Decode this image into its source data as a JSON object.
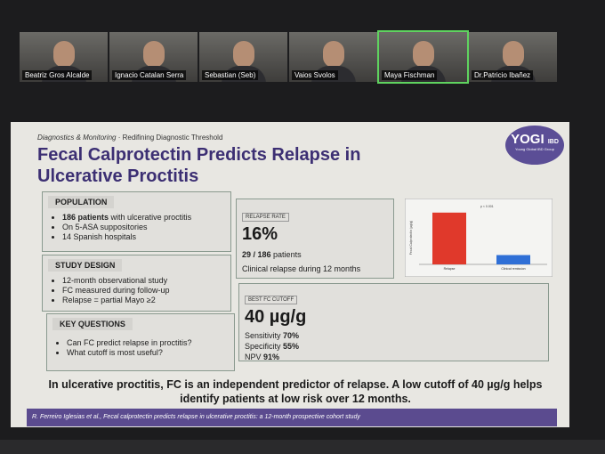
{
  "participants": [
    "Beatriz Gros Alcalde",
    "Ignacio Catalan Serra",
    "Sebastian (Seb)",
    "Vaios Svolos",
    "Maya Fischman",
    "Dr.Patricio Ibañez"
  ],
  "slide": {
    "kicker": "Diagnostics & Monitoring",
    "kicker_detail": "· Redifining Diagnostic Threshold",
    "title": "Fecal Calprotectin Predicts Relapse in Ulcerative Proctitis",
    "logo": {
      "name": "YOGI",
      "tag": "IBD",
      "subtitle": "Young Global IBD Group"
    },
    "population": {
      "heading": "POPULATION",
      "lead_bold": "186 patients",
      "lead_rest": "with ulcerative proctitis",
      "items": [
        "On 5-ASA suppositories",
        "14 Spanish hospitals"
      ]
    },
    "study_design": {
      "heading": "STUDY DESIGN",
      "items": [
        "12-month observational study",
        "FC measured during follow-up",
        "Relapse = partial Mayo ≥2"
      ]
    },
    "key_questions": {
      "heading": "KEY QUESTIONS",
      "items": [
        "Can FC predict relapse in proctitis?",
        "What cutoff is most useful?"
      ]
    },
    "relapse_rate": {
      "label": "RELAPSE RATE",
      "value": "16%",
      "count_bold": "29 / 186",
      "count_rest": "patients",
      "note": "Clinical relapse during 12 months"
    },
    "fc_cutoff": {
      "label": "BEST FC CUTOFF",
      "value": "40 µg/g",
      "metrics": [
        {
          "name": "Sensitivity",
          "value": "70%"
        },
        {
          "name": "Specificity",
          "value": "55%"
        },
        {
          "name": "NPV",
          "value": "91%"
        }
      ]
    },
    "conclusion": "In ulcerative proctitis, FC is an independent predictor of relapse. A low cutoff of 40 µg/g helps identify patients at low risk over 12 months.",
    "citation_author": "R. Ferreiro Iglesias et al.,",
    "citation_title": "Fecal calprotectin predicts relapse in ulcerative proctitis: a 12-month prospective cohort study"
  },
  "chart_data": {
    "type": "bar",
    "ylabel": "Fecal Calprotectin (µg/g)",
    "categories": [
      "Relapse",
      "Clinical remission"
    ],
    "values": [
      100,
      18
    ],
    "colors": [
      "#e0392b",
      "#2f6fd6"
    ],
    "ylim": [
      0,
      110
    ],
    "annotation": "p < 0.001"
  }
}
